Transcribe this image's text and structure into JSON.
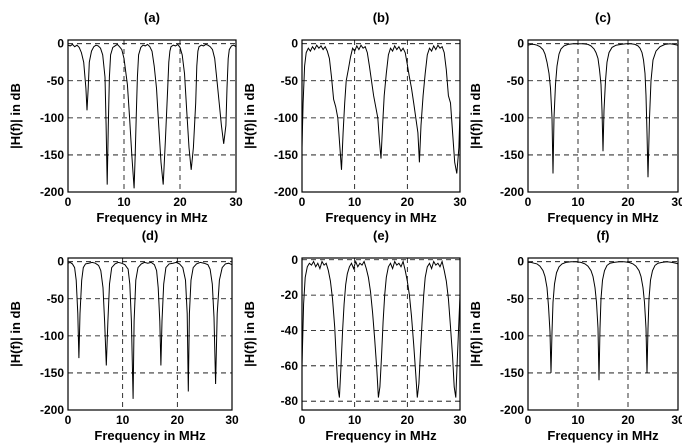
{
  "chart_data": [
    {
      "type": "line",
      "title": "(a)",
      "xlabel": "Frequency in MHz",
      "ylabel": "|H(f)| in dB",
      "xlim": [
        0,
        30
      ],
      "ylim": [
        -200,
        5
      ],
      "xticks": [
        "0",
        "10",
        "20",
        "30"
      ],
      "yticks": [
        "0",
        "-50",
        "-100",
        "-150",
        "-200"
      ],
      "grid": true,
      "series": [
        {
          "x": [
            0,
            0.4,
            0.8,
            1.2,
            1.6,
            2.0,
            2.4,
            2.8,
            3.2,
            3.4,
            3.6,
            3.8,
            4.2,
            4.6,
            5.0,
            5.4,
            5.8,
            6.2,
            6.6,
            6.8,
            7.0,
            7.2,
            7.4,
            7.6,
            8.0,
            8.4,
            8.8,
            9.2,
            9.6,
            10.0,
            10.6,
            11.0,
            11.4,
            11.8,
            12.0,
            12.2,
            12.4,
            12.6,
            13.0,
            13.4,
            13.8,
            14.2,
            14.6,
            15.0,
            15.4,
            15.8,
            16.2,
            16.6,
            17.0,
            17.4,
            17.8,
            18.0,
            18.2,
            18.4,
            18.8,
            19.2,
            19.6,
            20.0,
            20.4,
            20.8,
            21.2,
            21.6,
            22.0,
            22.4,
            22.8,
            23.0,
            23.2,
            23.4,
            23.8,
            24.2,
            24.6,
            25.0,
            25.4,
            25.8,
            26.2,
            26.6,
            27.0,
            27.4,
            27.8,
            28.2,
            28.4,
            28.6,
            28.8,
            29.2,
            29.6,
            30.0
          ],
          "y": [
            -2,
            -3,
            -1,
            -4,
            -2,
            -5,
            -12,
            -25,
            -60,
            -90,
            -60,
            -25,
            -10,
            -4,
            -2,
            -3,
            -6,
            -15,
            -45,
            -110,
            -190,
            -110,
            -45,
            -15,
            -5,
            -3,
            -1,
            -4,
            -8,
            -20,
            -55,
            -100,
            -150,
            -195,
            -150,
            -95,
            -45,
            -15,
            -5,
            -2,
            -3,
            -1,
            -4,
            -10,
            -30,
            -60,
            -110,
            -160,
            -190,
            -130,
            -60,
            -25,
            -10,
            -4,
            -2,
            -3,
            -1,
            -5,
            -15,
            -40,
            -90,
            -140,
            -170,
            -140,
            -80,
            -30,
            -10,
            -4,
            -2,
            -3,
            -1,
            -2,
            -4,
            -8,
            -20,
            -50,
            -80,
            -110,
            -135,
            -110,
            -60,
            -20,
            -8,
            -3,
            -2,
            -4
          ]
        }
      ]
    },
    {
      "type": "line",
      "title": "(b)",
      "xlabel": "Frequency in MHz",
      "ylabel": "|H(f)| in dB",
      "xlim": [
        0,
        30
      ],
      "ylim": [
        -200,
        5
      ],
      "xticks": [
        "0",
        "10",
        "20",
        "30"
      ],
      "yticks": [
        "0",
        "-50",
        "-100",
        "-150",
        "-200"
      ],
      "grid": true,
      "series": [
        {
          "x": [
            0,
            0.2,
            0.5,
            0.8,
            1.2,
            1.6,
            2.0,
            2.4,
            2.8,
            3.2,
            3.6,
            4.0,
            4.4,
            4.8,
            5.2,
            5.6,
            6.0,
            6.4,
            6.8,
            7.2,
            7.5,
            7.8,
            8.1,
            8.4,
            8.8,
            9.2,
            9.6,
            10.0,
            10.4,
            10.8,
            11.2,
            11.6,
            12.0,
            12.4,
            12.8,
            13.2,
            13.6,
            14.0,
            14.4,
            14.7,
            15.0,
            15.3,
            15.6,
            16.0,
            16.4,
            16.8,
            17.2,
            17.6,
            18.0,
            18.4,
            18.8,
            19.2,
            19.6,
            20.0,
            20.4,
            20.8,
            21.2,
            21.6,
            22.0,
            22.3,
            22.6,
            23.0,
            23.4,
            23.8,
            24.2,
            24.6,
            25.0,
            25.4,
            25.8,
            26.2,
            26.6,
            27.0,
            27.4,
            27.8,
            28.2,
            28.6,
            29.0,
            29.4,
            29.8,
            30.0
          ],
          "y": [
            -140,
            -80,
            -30,
            -12,
            -6,
            -10,
            -4,
            -8,
            -2,
            -6,
            -3,
            -8,
            -4,
            -10,
            -20,
            -45,
            -75,
            -85,
            -100,
            -140,
            -170,
            -120,
            -80,
            -50,
            -35,
            -18,
            -6,
            -10,
            -3,
            -8,
            -2,
            -6,
            -4,
            -12,
            -30,
            -50,
            -70,
            -85,
            -100,
            -130,
            -155,
            -110,
            -70,
            -40,
            -15,
            -6,
            -10,
            -3,
            -8,
            -4,
            -10,
            -6,
            -12,
            -28,
            -45,
            -60,
            -80,
            -100,
            -120,
            -160,
            -110,
            -70,
            -40,
            -15,
            -6,
            -10,
            -3,
            -8,
            -2,
            -6,
            -4,
            -12,
            -35,
            -70,
            -80,
            -120,
            -160,
            -175,
            -140,
            -90
          ]
        }
      ]
    },
    {
      "type": "line",
      "title": "(c)",
      "xlabel": "Frequency in MHz",
      "ylabel": "|H(f)| in dB",
      "xlim": [
        0,
        30
      ],
      "ylim": [
        -200,
        5
      ],
      "xticks": [
        "0",
        "10",
        "20",
        "30"
      ],
      "yticks": [
        "0",
        "-50",
        "-100",
        "-150",
        "-200"
      ],
      "grid": true,
      "series": [
        {
          "x": [
            0,
            0.6,
            1.2,
            1.8,
            2.4,
            3.0,
            3.4,
            3.8,
            4.2,
            4.5,
            4.8,
            5.0,
            5.2,
            5.5,
            5.8,
            6.2,
            6.6,
            7.2,
            8.0,
            9.0,
            10.0,
            11.0,
            12.0,
            12.6,
            13.2,
            13.6,
            14.0,
            14.3,
            14.6,
            14.8,
            15.0,
            15.2,
            15.5,
            15.8,
            16.2,
            16.8,
            17.6,
            18.6,
            19.6,
            20.6,
            21.4,
            22.0,
            22.4,
            22.8,
            23.1,
            23.4,
            23.6,
            23.8,
            24.0,
            24.3,
            24.6,
            25.0,
            25.6,
            26.4,
            27.4,
            28.4,
            29.2,
            30.0
          ],
          "y": [
            -2,
            -1,
            -1,
            -2,
            -4,
            -8,
            -14,
            -25,
            -40,
            -60,
            -100,
            -175,
            -100,
            -55,
            -30,
            -14,
            -7,
            -3,
            -1,
            0,
            0,
            0,
            -1,
            -3,
            -7,
            -12,
            -20,
            -35,
            -55,
            -90,
            -145,
            -90,
            -50,
            -25,
            -12,
            -5,
            -2,
            -1,
            0,
            0,
            -1,
            -3,
            -6,
            -12,
            -22,
            -40,
            -70,
            -120,
            -180,
            -100,
            -50,
            -22,
            -10,
            -4,
            -1,
            0,
            -1,
            -2
          ]
        }
      ]
    },
    {
      "type": "line",
      "title": "(d)",
      "xlabel": "Frequency in MHz",
      "ylabel": "|H(f)| in dB",
      "xlim": [
        0,
        30
      ],
      "ylim": [
        -200,
        5
      ],
      "xticks": [
        "0",
        "10",
        "20",
        "30"
      ],
      "yticks": [
        "0",
        "-50",
        "-100",
        "-150",
        "-200"
      ],
      "grid": true,
      "series": [
        {
          "x": [
            0,
            0.4,
            0.8,
            1.2,
            1.5,
            1.8,
            2.0,
            2.2,
            2.5,
            2.8,
            3.2,
            3.8,
            4.4,
            5.0,
            5.6,
            6.0,
            6.4,
            6.7,
            7.0,
            7.3,
            7.6,
            8.0,
            8.6,
            9.2,
            9.8,
            10.4,
            11.0,
            11.3,
            11.6,
            11.9,
            12.1,
            12.4,
            12.8,
            13.4,
            14.0,
            14.6,
            15.2,
            15.8,
            16.2,
            16.5,
            16.8,
            17.0,
            17.2,
            17.5,
            17.9,
            18.5,
            19.2,
            19.8,
            20.4,
            21.0,
            21.5,
            21.8,
            22.0,
            22.2,
            22.5,
            22.9,
            23.5,
            24.2,
            24.9,
            25.6,
            26.0,
            26.4,
            26.7,
            27.0,
            27.3,
            27.7,
            28.2,
            28.8,
            29.4,
            30.0
          ],
          "y": [
            -2,
            -1,
            -3,
            -8,
            -25,
            -70,
            -130,
            -70,
            -25,
            -8,
            -3,
            -2,
            -1,
            -2,
            -5,
            -12,
            -35,
            -80,
            -140,
            -80,
            -30,
            -8,
            -3,
            -1,
            -2,
            -4,
            -10,
            -30,
            -80,
            -185,
            -80,
            -25,
            -8,
            -3,
            -1,
            -2,
            -1,
            -4,
            -12,
            -35,
            -80,
            -140,
            -80,
            -30,
            -8,
            -3,
            -2,
            -1,
            -3,
            -8,
            -25,
            -70,
            -175,
            -70,
            -25,
            -8,
            -3,
            -1,
            -2,
            -4,
            -10,
            -30,
            -75,
            -165,
            -70,
            -25,
            -8,
            -3,
            -2,
            -4
          ]
        }
      ]
    },
    {
      "type": "line",
      "title": "(e)",
      "xlabel": "Frequency in MHz",
      "ylabel": "|H(f)| in dB",
      "xlim": [
        0,
        30
      ],
      "ylim": [
        -85,
        1
      ],
      "xticks": [
        "0",
        "10",
        "20",
        "30"
      ],
      "yticks": [
        "0",
        "-20",
        "-40",
        "-60",
        "-80"
      ],
      "grid": true,
      "series": [
        {
          "x": [
            0,
            0.3,
            0.6,
            1.0,
            1.4,
            1.8,
            2.2,
            2.6,
            3.0,
            3.4,
            3.8,
            4.2,
            4.6,
            5.0,
            5.4,
            5.8,
            6.2,
            6.5,
            6.8,
            7.1,
            7.4,
            7.7,
            8.0,
            8.3,
            8.6,
            9.0,
            9.4,
            9.8,
            10.2,
            10.6,
            11.0,
            11.4,
            11.8,
            12.2,
            12.6,
            13.0,
            13.4,
            13.8,
            14.2,
            14.5,
            14.8,
            15.1,
            15.4,
            15.7,
            16.0,
            16.4,
            16.8,
            17.2,
            17.6,
            18.0,
            18.4,
            18.8,
            19.2,
            19.6,
            20.0,
            20.4,
            20.8,
            21.2,
            21.6,
            21.9,
            22.2,
            22.5,
            22.8,
            23.1,
            23.4,
            23.8,
            24.2,
            24.6,
            25.0,
            25.4,
            25.8,
            26.2,
            26.6,
            27.0,
            27.4,
            27.8,
            28.2,
            28.6,
            28.9,
            29.2,
            29.5,
            29.8,
            30.0
          ],
          "y": [
            -60,
            -25,
            -10,
            -4,
            -2,
            -3,
            -1,
            -4,
            -2,
            -5,
            -1,
            -3,
            -2,
            -6,
            -12,
            -22,
            -38,
            -55,
            -72,
            -78,
            -60,
            -40,
            -25,
            -14,
            -8,
            -4,
            -2,
            -5,
            -1,
            -4,
            -2,
            -3,
            -1,
            -5,
            -10,
            -18,
            -30,
            -45,
            -62,
            -78,
            -72,
            -55,
            -35,
            -20,
            -10,
            -4,
            -2,
            -5,
            -1,
            -3,
            -2,
            -4,
            -1,
            -6,
            -12,
            -20,
            -32,
            -48,
            -65,
            -78,
            -70,
            -52,
            -35,
            -20,
            -10,
            -4,
            -2,
            -5,
            -1,
            -3,
            -2,
            -4,
            -1,
            -6,
            -12,
            -22,
            -38,
            -55,
            -72,
            -78,
            -55,
            -35,
            -20
          ]
        }
      ]
    },
    {
      "type": "line",
      "title": "(f)",
      "xlabel": "Frequency in MHz",
      "ylabel": "|H(f)| in dB",
      "xlim": [
        0,
        30
      ],
      "ylim": [
        -200,
        5
      ],
      "xticks": [
        "0",
        "10",
        "20",
        "30"
      ],
      "yticks": [
        "0",
        "-50",
        "-100",
        "-150",
        "-200"
      ],
      "grid": true,
      "series": [
        {
          "x": [
            0,
            0.6,
            1.2,
            1.8,
            2.4,
            3.0,
            3.4,
            3.8,
            4.1,
            4.4,
            4.6,
            4.8,
            5.0,
            5.3,
            5.7,
            6.2,
            6.8,
            7.6,
            8.6,
            9.6,
            10.6,
            11.4,
            12.0,
            12.6,
            13.0,
            13.4,
            13.7,
            14.0,
            14.2,
            14.4,
            14.6,
            14.9,
            15.3,
            15.8,
            16.4,
            17.2,
            18.2,
            19.2,
            20.2,
            21.0,
            21.6,
            22.2,
            22.6,
            23.0,
            23.3,
            23.6,
            23.8,
            24.0,
            24.2,
            24.5,
            24.9,
            25.4,
            26.0,
            26.8,
            27.8,
            28.8,
            29.6,
            30.0
          ],
          "y": [
            -1,
            -1,
            -2,
            -3,
            -6,
            -12,
            -20,
            -35,
            -60,
            -95,
            -150,
            -95,
            -55,
            -30,
            -15,
            -7,
            -3,
            -1,
            0,
            0,
            -1,
            -3,
            -6,
            -12,
            -20,
            -35,
            -55,
            -90,
            -160,
            -90,
            -50,
            -25,
            -12,
            -5,
            -2,
            -1,
            0,
            0,
            -1,
            -3,
            -6,
            -12,
            -20,
            -35,
            -55,
            -90,
            -150,
            -90,
            -50,
            -25,
            -12,
            -5,
            -2,
            -1,
            0,
            -1,
            -2,
            -3
          ]
        }
      ]
    }
  ]
}
